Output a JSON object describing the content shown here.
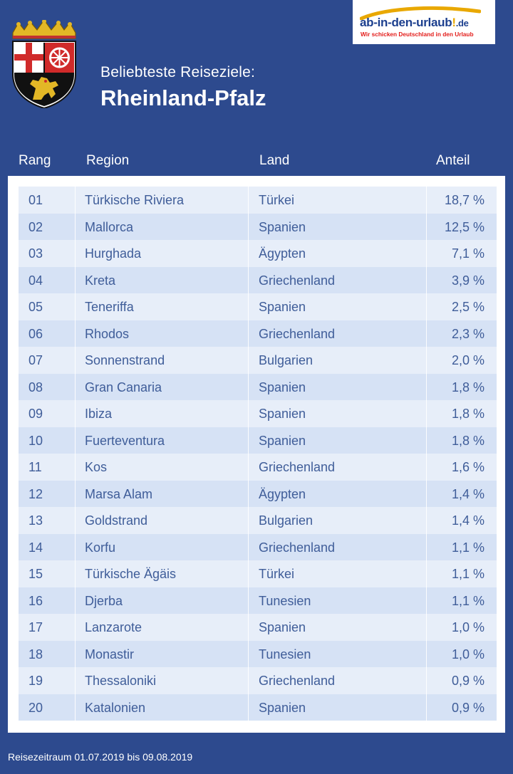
{
  "header": {
    "subtitle": "Beliebteste Reiseziele:",
    "title": "Rheinland-Pfalz"
  },
  "logo": {
    "name_main": "ab-in-den-urlaub",
    "name_excl": "!",
    "name_tld": ".de",
    "tagline": "Wir schicken Deutschland in den Urlaub"
  },
  "table": {
    "headers": {
      "rank": "Rang",
      "region": "Region",
      "land": "Land",
      "share": "Anteil"
    },
    "rows": [
      {
        "rank": "01",
        "region": "Türkische Riviera",
        "land": "Türkei",
        "share": "18,7 %"
      },
      {
        "rank": "02",
        "region": "Mallorca",
        "land": "Spanien",
        "share": "12,5 %"
      },
      {
        "rank": "03",
        "region": "Hurghada",
        "land": "Ägypten",
        "share": "7,1 %"
      },
      {
        "rank": "04",
        "region": "Kreta",
        "land": "Griechenland",
        "share": "3,9 %"
      },
      {
        "rank": "05",
        "region": "Teneriffa",
        "land": "Spanien",
        "share": "2,5 %"
      },
      {
        "rank": "06",
        "region": "Rhodos",
        "land": "Griechenland",
        "share": "2,3 %"
      },
      {
        "rank": "07",
        "region": "Sonnenstrand",
        "land": "Bulgarien",
        "share": "2,0 %"
      },
      {
        "rank": "08",
        "region": "Gran Canaria",
        "land": "Spanien",
        "share": "1,8 %"
      },
      {
        "rank": "09",
        "region": "Ibiza",
        "land": "Spanien",
        "share": "1,8 %"
      },
      {
        "rank": "10",
        "region": "Fuerteventura",
        "land": "Spanien",
        "share": "1,8 %"
      },
      {
        "rank": "11",
        "region": "Kos",
        "land": "Griechenland",
        "share": "1,6 %"
      },
      {
        "rank": "12",
        "region": "Marsa Alam",
        "land": "Ägypten",
        "share": "1,4 %"
      },
      {
        "rank": "13",
        "region": "Goldstrand",
        "land": "Bulgarien",
        "share": "1,4 %"
      },
      {
        "rank": "14",
        "region": "Korfu",
        "land": "Griechenland",
        "share": "1,1 %"
      },
      {
        "rank": "15",
        "region": "Türkische Ägäis",
        "land": "Türkei",
        "share": "1,1 %"
      },
      {
        "rank": "16",
        "region": "Djerba",
        "land": "Tunesien",
        "share": "1,1 %"
      },
      {
        "rank": "17",
        "region": "Lanzarote",
        "land": "Spanien",
        "share": "1,0 %"
      },
      {
        "rank": "18",
        "region": "Monastir",
        "land": "Tunesien",
        "share": "1,0 %"
      },
      {
        "rank": "19",
        "region": "Thessaloniki",
        "land": "Griechenland",
        "share": "0,9 %"
      },
      {
        "rank": "20",
        "region": "Katalonien",
        "land": "Spanien",
        "share": "0,9 %"
      }
    ]
  },
  "footer": {
    "travel_period": "Reisezeitraum 01.07.2019 bis 09.08.2019"
  },
  "colors": {
    "primary_blue": "#2d4a8e",
    "row_light": "#e7eef9",
    "row_dark": "#d6e2f5",
    "text_blue": "#3f5d99",
    "logo_red": "#e31d1a",
    "logo_yellow": "#e9a800"
  },
  "icons": {
    "crest": "rheinland-pfalz-coat-of-arms-icon"
  }
}
